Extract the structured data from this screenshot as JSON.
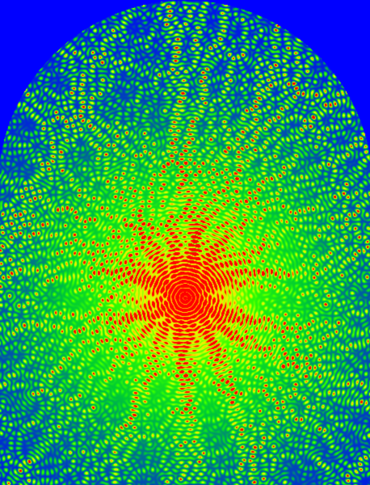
{
  "image": {
    "subject": "wave-interference-field",
    "boundary_shape": "stadium-arch",
    "background_color": "#0000ff",
    "colormap": [
      "#0000ff",
      "#00cc33",
      "#33ff00",
      "#ddff00",
      "#ffdd00",
      "#ff0000"
    ],
    "source_count": 1
  }
}
